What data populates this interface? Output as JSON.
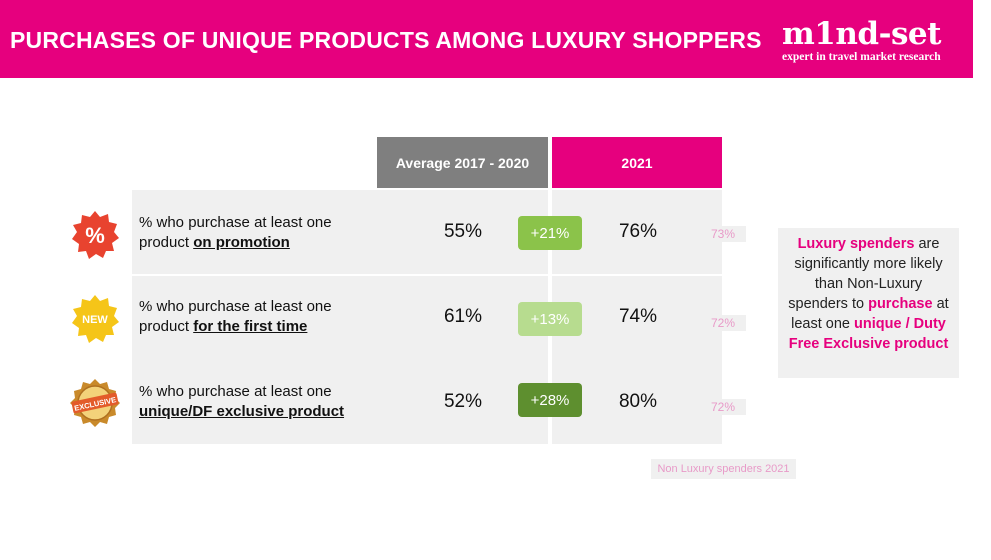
{
  "header": {
    "title": "PURCHASES OF UNIQUE PRODUCTS AMONG LUXURY SHOPPERS",
    "logo_word": "m1nd-set",
    "logo_tagline": "expert in travel market research",
    "color": "#e6007e"
  },
  "columns": {
    "avg_label": "Average 2017 - 2020",
    "y2021_label": "2021"
  },
  "rows": [
    {
      "icon": "percent-badge-icon",
      "label_pre": "% who purchase at least one",
      "label_plain": "product ",
      "label_bold": "on promotion",
      "avg": "55%",
      "delta": "+21%",
      "delta_color": "#8bc34a",
      "y2021": "76%",
      "nonlux": "73%"
    },
    {
      "icon": "new-badge-icon",
      "label_pre": "% who purchase at least one",
      "label_plain": "product ",
      "label_bold": "for the first time",
      "avg": "61%",
      "delta": "+13%",
      "delta_color": "#b7dc8f",
      "y2021": "74%",
      "nonlux": "72%"
    },
    {
      "icon": "exclusive-seal-icon",
      "label_pre": "% who purchase at least one",
      "label_plain": "",
      "label_bold": "unique/DF exclusive product",
      "avg": "52%",
      "delta": "+28%",
      "delta_color": "#5e8f2f",
      "y2021": "80%",
      "nonlux": "72%"
    }
  ],
  "chart_data": {
    "type": "table",
    "columns": [
      "Average 2017 - 2020",
      "2021",
      "Non Luxury spenders 2021"
    ],
    "rows": [
      {
        "metric": "% who purchase at least one product on promotion",
        "avg_2017_2020": 55,
        "y2021": 76,
        "change": 21,
        "non_luxury_2021": 73
      },
      {
        "metric": "% who purchase at least one product for the first time",
        "avg_2017_2020": 61,
        "y2021": 74,
        "change": 13,
        "non_luxury_2021": 72
      },
      {
        "metric": "% who purchase at least one unique/DF exclusive product",
        "avg_2017_2020": 52,
        "y2021": 80,
        "change": 28,
        "non_luxury_2021": 72
      }
    ],
    "unit": "%"
  },
  "side_note": {
    "p1": "Luxury spenders",
    "p2": " are significantly more likely than Non-Luxury spenders to ",
    "p3": "purchase",
    "p4": " at least one ",
    "p5": "unique / Duty Free Exclusive product"
  },
  "legend_note": "Non Luxury spenders 2021"
}
